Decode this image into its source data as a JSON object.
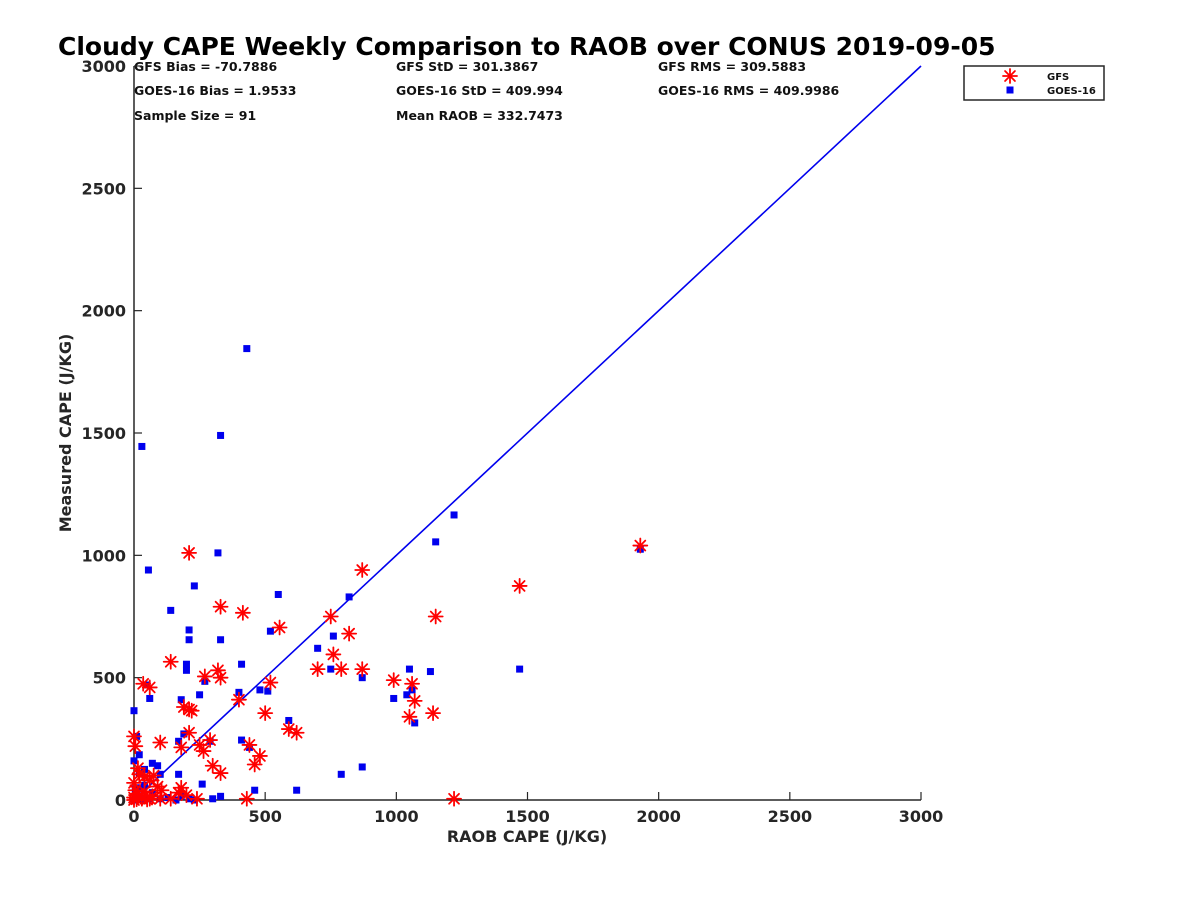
{
  "chart_data": {
    "type": "scatter",
    "title": "Cloudy CAPE Weekly Comparison to RAOB over CONUS 2019-09-05",
    "xlabel": "RAOB CAPE (J/KG)",
    "ylabel": "Measured CAPE (J/KG)",
    "xlim": [
      0,
      3000
    ],
    "ylim": [
      0,
      3000
    ],
    "xticks": [
      0,
      500,
      1000,
      1500,
      2000,
      2500,
      3000
    ],
    "yticks": [
      0,
      500,
      1000,
      1500,
      2000,
      2500,
      3000
    ],
    "x_tick_labels": [
      "0",
      "500",
      "1000",
      "1500",
      "2000",
      "2500",
      "3000"
    ],
    "y_tick_labels": [
      "0",
      "500",
      "1000",
      "1500",
      "2000",
      "2500",
      "3000"
    ],
    "grid": false,
    "legend_position": "top-right",
    "stats": [
      "GFS Bias = -70.7886",
      "GFS StD = 301.3867",
      "GFS RMS = 309.5883",
      "GOES-16 Bias = 1.9533",
      "GOES-16 StD = 409.994",
      "GOES-16 RMS = 409.9986",
      "Sample Size = 91",
      "Mean RAOB = 332.7473"
    ],
    "reference_line": {
      "x": [
        0,
        3000
      ],
      "y": [
        0,
        3000
      ],
      "color": "#0000ee"
    },
    "series": [
      {
        "name": "GFS",
        "marker": "asterisk",
        "color": "#ff0000",
        "points": [
          [
            210,
            1010
          ],
          [
            870,
            940
          ],
          [
            330,
            790
          ],
          [
            415,
            765
          ],
          [
            750,
            750
          ],
          [
            1150,
            750
          ],
          [
            555,
            705
          ],
          [
            820,
            680
          ],
          [
            1470,
            875
          ],
          [
            1930,
            1040
          ],
          [
            760,
            595
          ],
          [
            140,
            565
          ],
          [
            700,
            535
          ],
          [
            790,
            535
          ],
          [
            870,
            535
          ],
          [
            320,
            530
          ],
          [
            270,
            505
          ],
          [
            330,
            500
          ],
          [
            990,
            490
          ],
          [
            1060,
            475
          ],
          [
            35,
            475
          ],
          [
            60,
            460
          ],
          [
            520,
            480
          ],
          [
            400,
            410
          ],
          [
            1070,
            405
          ],
          [
            190,
            380
          ],
          [
            210,
            370
          ],
          [
            220,
            365
          ],
          [
            500,
            355
          ],
          [
            1140,
            355
          ],
          [
            1050,
            340
          ],
          [
            590,
            290
          ],
          [
            620,
            275
          ],
          [
            210,
            275
          ],
          [
            0,
            260
          ],
          [
            290,
            245
          ],
          [
            100,
            235
          ],
          [
            250,
            225
          ],
          [
            440,
            225
          ],
          [
            5,
            220
          ],
          [
            180,
            215
          ],
          [
            265,
            200
          ],
          [
            480,
            180
          ],
          [
            460,
            145
          ],
          [
            300,
            140
          ],
          [
            15,
            130
          ],
          [
            330,
            110
          ],
          [
            20,
            105
          ],
          [
            75,
            100
          ],
          [
            40,
            95
          ],
          [
            60,
            80
          ],
          [
            0,
            70
          ],
          [
            90,
            55
          ],
          [
            180,
            50
          ],
          [
            105,
            40
          ],
          [
            5,
            40
          ],
          [
            40,
            35
          ],
          [
            170,
            30
          ],
          [
            15,
            25
          ],
          [
            200,
            20
          ],
          [
            70,
            15
          ],
          [
            0,
            10
          ],
          [
            30,
            5
          ],
          [
            60,
            5
          ],
          [
            100,
            5
          ],
          [
            140,
            5
          ],
          [
            240,
            5
          ],
          [
            430,
            5
          ],
          [
            1220,
            5
          ],
          [
            10,
            3
          ],
          [
            50,
            2
          ],
          [
            0,
            0
          ]
        ]
      },
      {
        "name": "GOES-16",
        "marker": "square",
        "color": "#0000ee",
        "points": [
          [
            430,
            1845
          ],
          [
            330,
            1490
          ],
          [
            30,
            1445
          ],
          [
            1220,
            1165
          ],
          [
            320,
            1010
          ],
          [
            1150,
            1055
          ],
          [
            1930,
            1025
          ],
          [
            55,
            940
          ],
          [
            230,
            875
          ],
          [
            550,
            840
          ],
          [
            820,
            830
          ],
          [
            140,
            775
          ],
          [
            210,
            695
          ],
          [
            520,
            690
          ],
          [
            760,
            670
          ],
          [
            210,
            655
          ],
          [
            330,
            655
          ],
          [
            700,
            620
          ],
          [
            200,
            555
          ],
          [
            410,
            555
          ],
          [
            200,
            530
          ],
          [
            1050,
            535
          ],
          [
            1470,
            535
          ],
          [
            750,
            535
          ],
          [
            1130,
            525
          ],
          [
            870,
            500
          ],
          [
            270,
            485
          ],
          [
            50,
            470
          ],
          [
            1060,
            450
          ],
          [
            480,
            450
          ],
          [
            510,
            445
          ],
          [
            400,
            440
          ],
          [
            250,
            430
          ],
          [
            1040,
            430
          ],
          [
            990,
            415
          ],
          [
            60,
            415
          ],
          [
            180,
            410
          ],
          [
            0,
            365
          ],
          [
            590,
            325
          ],
          [
            1070,
            315
          ],
          [
            190,
            270
          ],
          [
            10,
            260
          ],
          [
            410,
            245
          ],
          [
            170,
            240
          ],
          [
            290,
            240
          ],
          [
            440,
            215
          ],
          [
            20,
            185
          ],
          [
            0,
            160
          ],
          [
            70,
            150
          ],
          [
            90,
            140
          ],
          [
            40,
            125
          ],
          [
            20,
            110
          ],
          [
            170,
            105
          ],
          [
            100,
            105
          ],
          [
            790,
            105
          ],
          [
            870,
            135
          ],
          [
            260,
            65
          ],
          [
            40,
            60
          ],
          [
            20,
            50
          ],
          [
            5,
            45
          ],
          [
            620,
            40
          ],
          [
            460,
            40
          ],
          [
            70,
            30
          ],
          [
            180,
            15
          ],
          [
            330,
            15
          ],
          [
            10,
            10
          ],
          [
            130,
            10
          ],
          [
            210,
            5
          ],
          [
            300,
            5
          ],
          [
            60,
            5
          ],
          [
            100,
            5
          ],
          [
            20,
            3
          ],
          [
            0,
            0
          ],
          [
            40,
            0
          ],
          [
            160,
            0
          ],
          [
            230,
            0
          ]
        ]
      }
    ]
  }
}
